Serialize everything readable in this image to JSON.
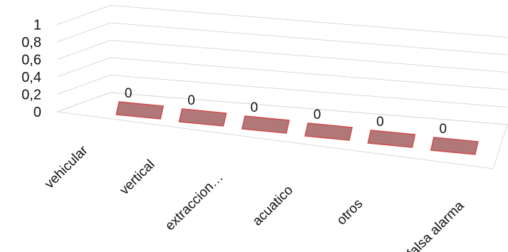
{
  "chart_data": {
    "type": "bar",
    "three_d": true,
    "categories": [
      "vehicular",
      "vertical",
      "extraccion…",
      "acuatico",
      "otros",
      "falsa alarma"
    ],
    "values": [
      0,
      0,
      0,
      0,
      0,
      0
    ],
    "data_labels": [
      "0",
      "0",
      "0",
      "0",
      "0",
      "0"
    ],
    "y_ticks": [
      "0",
      "0,2",
      "0,4",
      "0,6",
      "0,8",
      "1"
    ],
    "ylim": [
      0,
      1
    ],
    "grid": true,
    "legend": "none",
    "colors": {
      "bar_fill": "#b07878",
      "bar_edge": "#d04a4a",
      "gridline": "#d9d9d9"
    }
  }
}
